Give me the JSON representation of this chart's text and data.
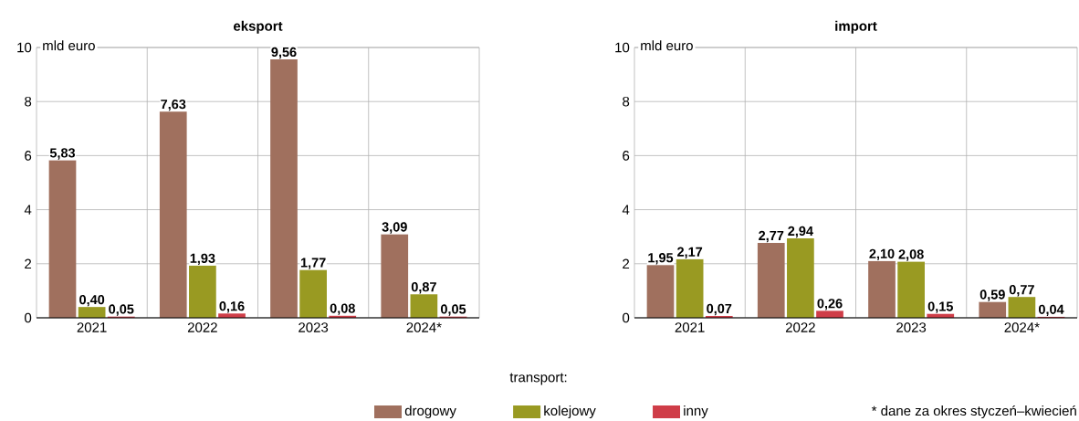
{
  "chart_data": [
    {
      "type": "bar",
      "title": "eksport",
      "ylabel": "mld euro",
      "categories": [
        "2021",
        "2022",
        "2023",
        "2024*"
      ],
      "series": [
        {
          "name": "drogowy",
          "color": "#a0705e",
          "values": [
            5.83,
            7.63,
            9.56,
            3.09
          ],
          "value_labels": [
            "5,83",
            "7,63",
            "9,56",
            "3,09"
          ]
        },
        {
          "name": "kolejowy",
          "color": "#999a22",
          "values": [
            0.4,
            1.93,
            1.77,
            0.87
          ],
          "value_labels": [
            "0,40",
            "1,93",
            "1,77",
            "0,87"
          ]
        },
        {
          "name": "inny",
          "color": "#cf3d48",
          "values": [
            0.05,
            0.16,
            0.08,
            0.05
          ],
          "value_labels": [
            "0,05",
            "0,16",
            "0,08",
            "0,05"
          ]
        }
      ],
      "ylim": [
        0,
        10
      ],
      "yticks": [
        0,
        2,
        4,
        6,
        8,
        10
      ],
      "grid": true,
      "legend": "bottom",
      "legend_title": "transport:"
    },
    {
      "type": "bar",
      "title": "import",
      "ylabel": "mld euro",
      "categories": [
        "2021",
        "2022",
        "2023",
        "2024*"
      ],
      "series": [
        {
          "color": "#a0705e",
          "values": [
            1.95,
            2.77,
            2.1,
            0.59
          ],
          "value_labels": [
            "1,95",
            "2,77",
            "2,10",
            "0,59"
          ]
        },
        {
          "color": "#999a22",
          "values": [
            2.17,
            2.94,
            2.08,
            0.77
          ],
          "value_labels": [
            "2,17",
            "2,94",
            "2,08",
            "0,77"
          ]
        },
        {
          "color": "#cf3d48",
          "values": [
            0.07,
            0.26,
            0.15,
            0.04
          ],
          "value_labels": [
            "0,07",
            "0,26",
            "0,15",
            "0,04"
          ]
        }
      ],
      "ylim": [
        0,
        10
      ],
      "yticks": [
        0,
        2,
        4,
        6,
        8,
        10
      ],
      "grid": true,
      "annotations": [
        "* dane za okres styczeń–kwiecień"
      ]
    }
  ]
}
